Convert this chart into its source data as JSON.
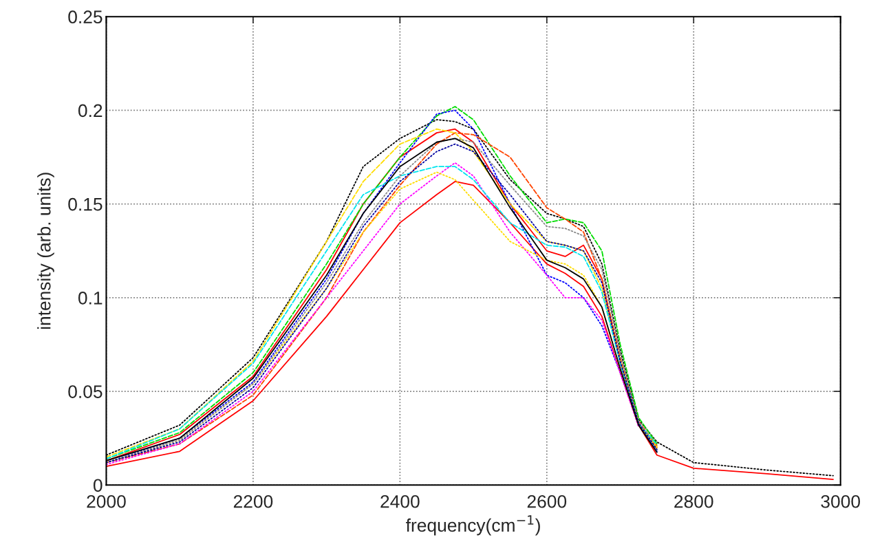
{
  "chart_data": {
    "type": "line",
    "xlabel": "frequency(cm$^{−1}$)",
    "ylabel": "intensity (arb. units)",
    "x": [
      2000,
      2100,
      2200,
      2300,
      2350,
      2400,
      2450,
      2475,
      2500,
      2550,
      2600,
      2625,
      2650,
      2675,
      2700,
      2725,
      2750,
      2800,
      2900,
      2990
    ],
    "xlim": [
      2000,
      3000
    ],
    "xticks": [
      2000,
      2200,
      2400,
      2600,
      2800,
      3000
    ],
    "ylim": [
      0,
      0.25
    ],
    "yticks": [
      0,
      0.05,
      0.1,
      0.15,
      0.2,
      0.25
    ],
    "grid": true,
    "marker": "none",
    "series": [
      {
        "color": "#ff0000",
        "line_style": "solid",
        "values": [
          0.01,
          0.018,
          0.045,
          0.09,
          0.115,
          0.14,
          0.155,
          0.162,
          0.16,
          0.14,
          0.118,
          0.113,
          0.106,
          0.09,
          0.06,
          0.032,
          0.016,
          0.009,
          0.006,
          0.003
        ]
      },
      {
        "color": "#ff0000",
        "line_style": "solid",
        "values": [
          0.013,
          0.027,
          0.058,
          0.115,
          0.15,
          0.175,
          0.188,
          0.19,
          0.183,
          0.15,
          0.125,
          0.122,
          0.128,
          0.11,
          0.065,
          0.033,
          0.02,
          null,
          null,
          null
        ]
      },
      {
        "color": "#000000",
        "line_style": "dotted",
        "values": [
          0.016,
          0.032,
          0.068,
          0.13,
          0.17,
          0.185,
          0.195,
          0.194,
          0.19,
          0.163,
          0.145,
          0.142,
          0.138,
          0.118,
          0.072,
          0.035,
          0.023,
          0.012,
          0.008,
          0.005
        ]
      },
      {
        "color": "#00dd00",
        "line_style": "dashed",
        "values": [
          0.014,
          0.028,
          0.06,
          0.118,
          0.15,
          0.175,
          0.197,
          0.202,
          0.195,
          0.165,
          0.14,
          0.142,
          0.14,
          0.125,
          0.075,
          0.036,
          0.022,
          null,
          null,
          null
        ]
      },
      {
        "color": "#0000ff",
        "line_style": "dotted",
        "values": [
          0.012,
          0.025,
          0.055,
          0.11,
          0.145,
          0.172,
          0.198,
          0.2,
          0.19,
          0.15,
          0.112,
          0.108,
          0.1,
          0.085,
          0.06,
          0.032,
          0.018,
          null,
          null,
          null
        ]
      },
      {
        "color": "#ff4500",
        "line_style": "dashed",
        "values": [
          0.012,
          0.022,
          0.048,
          0.1,
          0.135,
          0.16,
          0.182,
          0.188,
          0.187,
          0.175,
          0.148,
          0.142,
          0.135,
          0.11,
          0.068,
          0.034,
          0.021,
          null,
          null,
          null
        ]
      },
      {
        "color": "#ff00ff",
        "line_style": "dotted",
        "values": [
          0.011,
          0.022,
          0.05,
          0.1,
          0.125,
          0.15,
          0.165,
          0.172,
          0.165,
          0.135,
          0.112,
          0.1,
          0.1,
          0.088,
          0.06,
          0.031,
          null,
          null,
          null,
          null
        ]
      },
      {
        "color": "#ffdd00",
        "line_style": "dashed",
        "values": [
          0.015,
          0.03,
          0.066,
          0.13,
          0.162,
          0.182,
          0.19,
          0.188,
          0.178,
          0.15,
          0.13,
          0.128,
          0.125,
          0.105,
          0.066,
          0.033,
          0.0195,
          null,
          null,
          null
        ]
      },
      {
        "color": "#ffdd00",
        "line_style": "dotted",
        "values": [
          0.012,
          0.024,
          0.054,
          0.105,
          0.135,
          0.158,
          0.167,
          0.163,
          0.152,
          0.13,
          0.12,
          0.118,
          0.112,
          0.095,
          0.062,
          0.032,
          0.0205,
          null,
          null,
          null
        ]
      },
      {
        "color": "#00e5ee",
        "line_style": "dashed",
        "values": [
          0.014,
          0.03,
          0.065,
          0.125,
          0.155,
          0.165,
          0.17,
          0.17,
          0.163,
          0.14,
          0.128,
          0.127,
          0.122,
          0.103,
          0.065,
          0.033,
          0.0215,
          null,
          null,
          null
        ]
      },
      {
        "color": "#888888",
        "line_style": "dotted",
        "values": [
          0.012,
          0.024,
          0.054,
          0.108,
          0.14,
          0.165,
          0.183,
          0.185,
          0.183,
          0.16,
          0.138,
          0.137,
          0.133,
          0.115,
          0.07,
          0.034,
          0.0185,
          null,
          null,
          null
        ]
      },
      {
        "color": "#0000a0",
        "line_style": "dotted",
        "values": [
          0.012,
          0.023,
          0.052,
          0.105,
          0.138,
          0.162,
          0.178,
          0.182,
          0.178,
          0.155,
          0.13,
          0.128,
          0.125,
          0.108,
          0.066,
          0.033,
          0.019,
          null,
          null,
          null
        ]
      },
      {
        "color": "#000000",
        "line_style": "solid",
        "values": [
          0.013,
          0.025,
          0.057,
          0.112,
          0.145,
          0.17,
          0.183,
          0.185,
          0.18,
          0.148,
          0.12,
          0.116,
          0.11,
          0.095,
          0.062,
          0.032,
          0.0175,
          null,
          null,
          null
        ]
      }
    ]
  }
}
